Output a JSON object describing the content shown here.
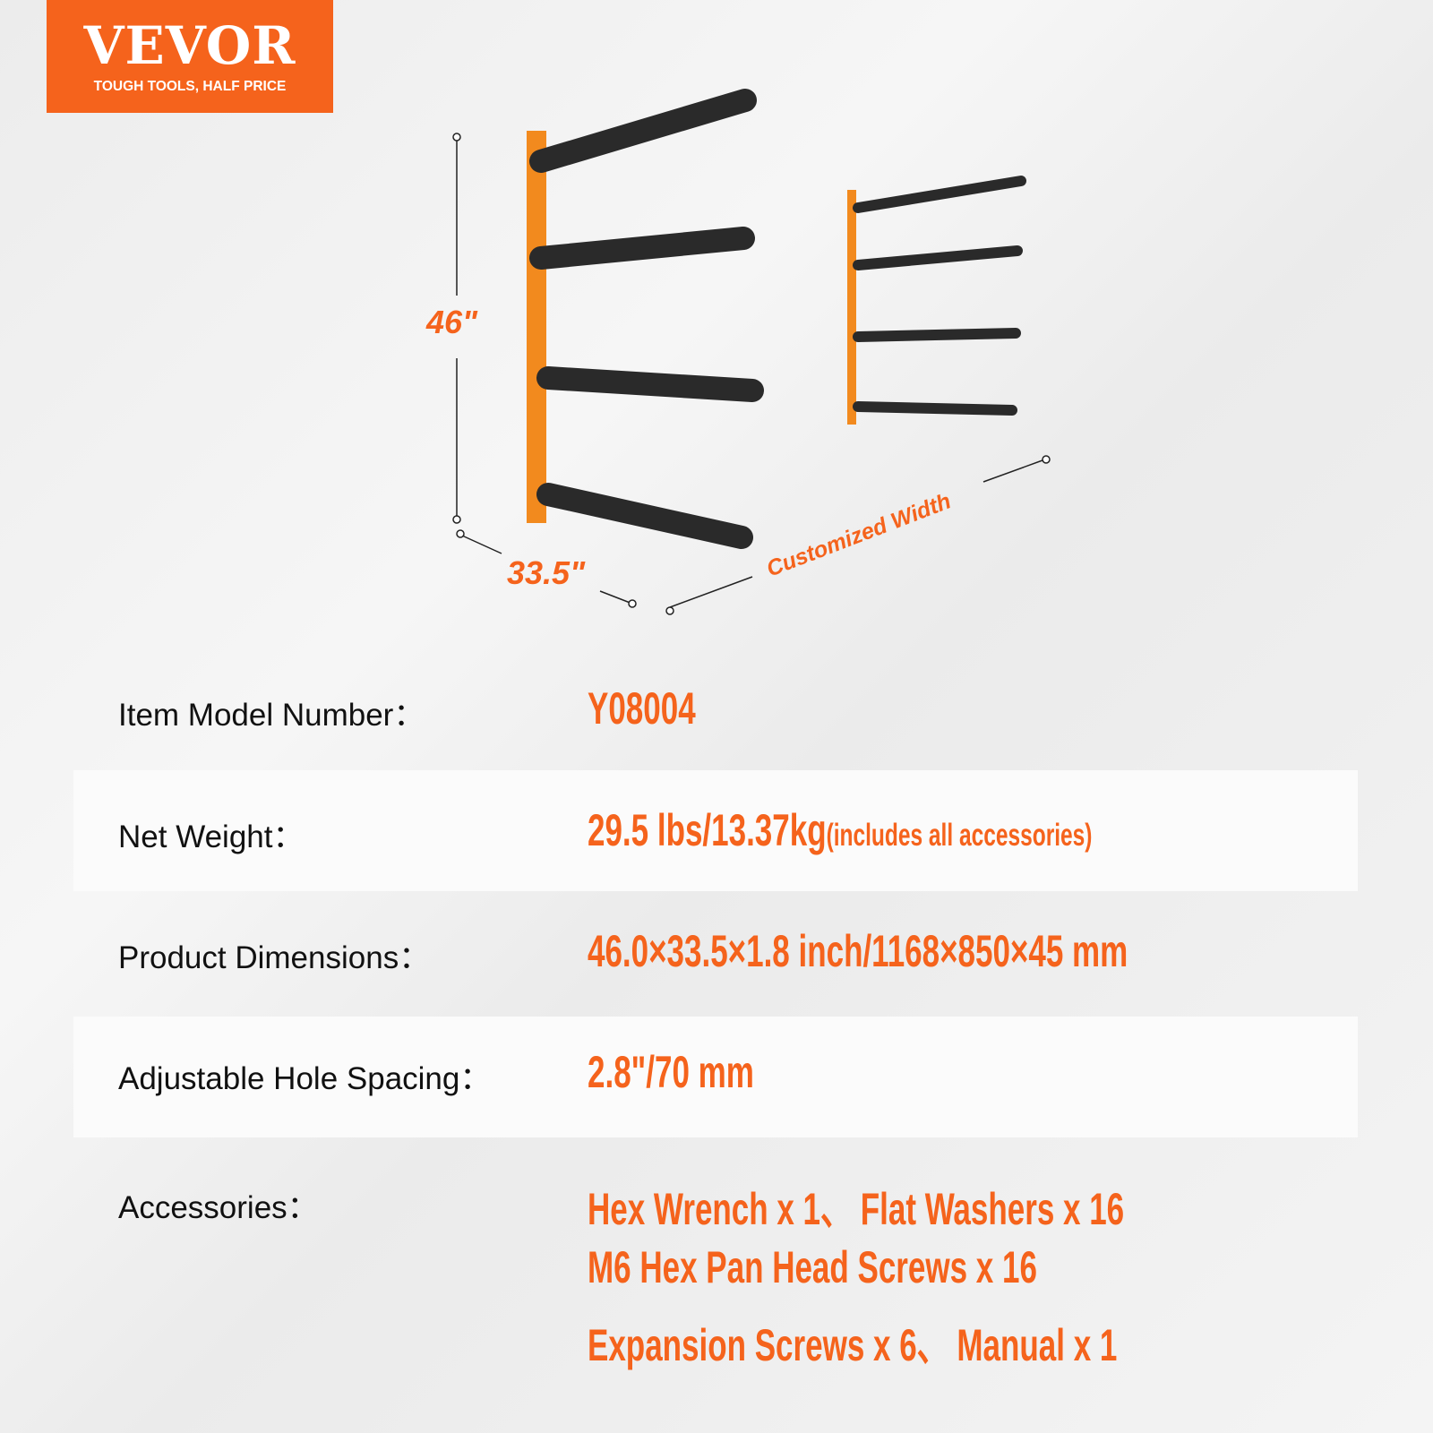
{
  "logo": {
    "brand": "VEVOR",
    "tagline": "TOUGH TOOLS, HALF PRICE"
  },
  "illustration": {
    "height_label": "46\"",
    "width_label": "33.5\"",
    "custom_label": "Customized Width"
  },
  "specs": [
    {
      "label": "Item Model Number：",
      "value": "Y08004"
    },
    {
      "label": "Net Weight：",
      "value": "29.5 lbs/13.37kg",
      "note": "(includes all accessories)"
    },
    {
      "label": "Product Dimensions：",
      "value": "46.0×33.5×1.8 inch/1168×850×45 mm"
    },
    {
      "label": "Adjustable Hole Spacing：",
      "value": "2.8\"/70 mm"
    },
    {
      "label": "Accessories：",
      "lines": [
        "Hex Wrench x 1、 Flat Washers x 16",
        "M6 Hex Pan Head Screws x 16",
        "Expansion Screws x 6、 Manual x 1"
      ]
    }
  ],
  "colors": {
    "accent": "#f5631c",
    "text": "#111111",
    "foam": "#2a2a2a"
  }
}
